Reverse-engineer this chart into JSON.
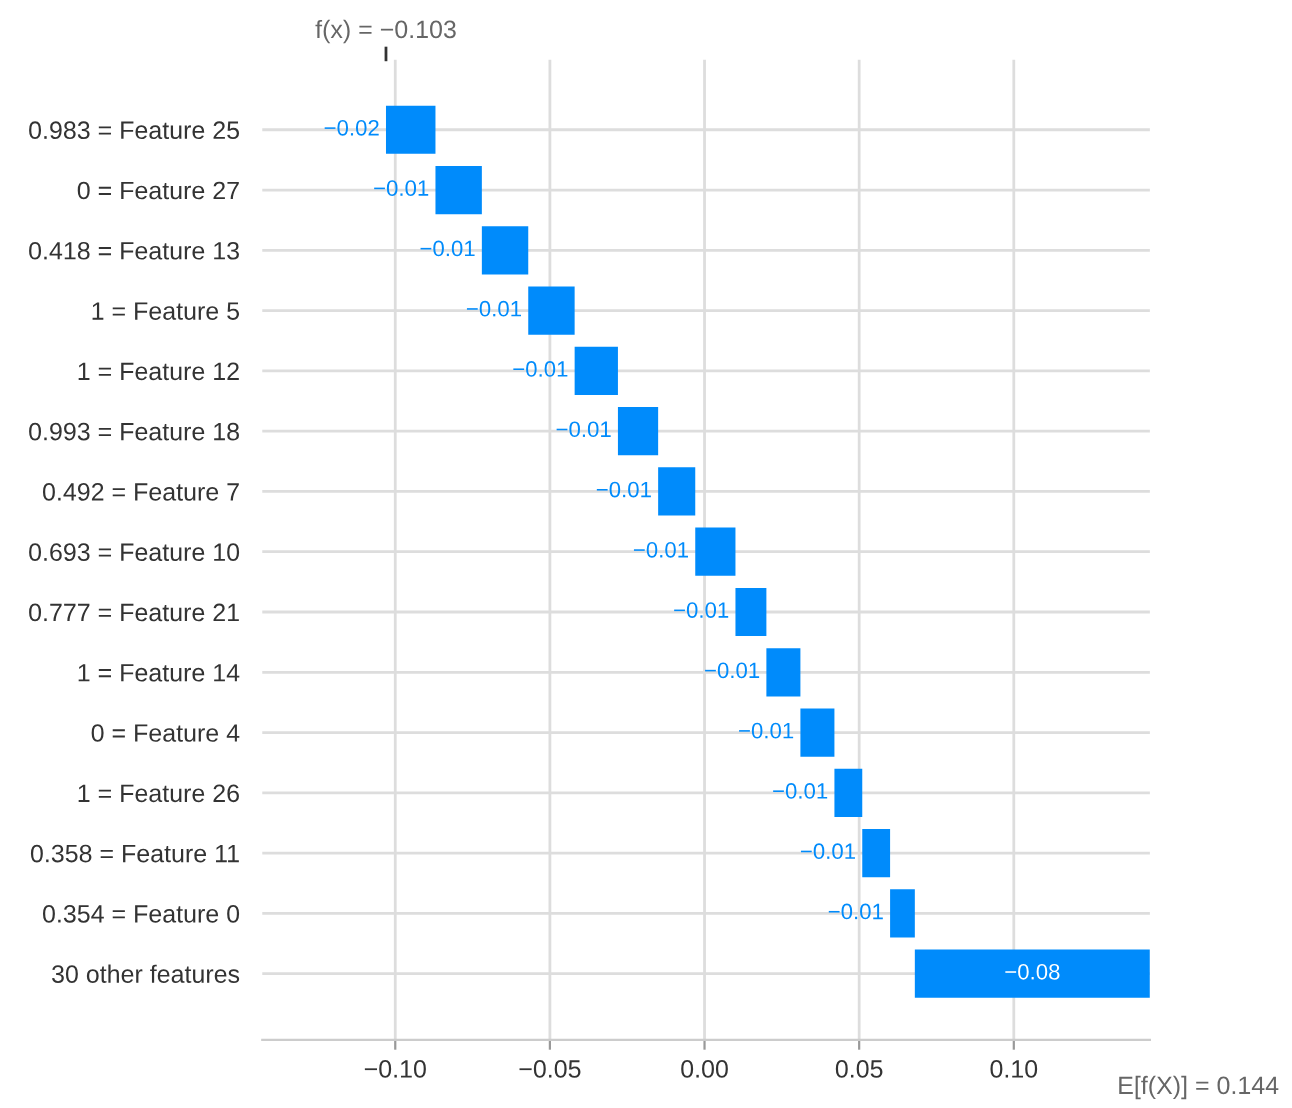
{
  "chart_data": {
    "type": "bar",
    "orientation": "horizontal",
    "categories": [
      "0.983 = Feature 25",
      "0 = Feature 27",
      "0.418 = Feature 13",
      "1 = Feature 5",
      "1 = Feature 12",
      "0.993 = Feature 18",
      "0.492 = Feature 7",
      "0.693 = Feature 10",
      "0.777 = Feature 21",
      "1 = Feature 14",
      "0 = Feature 4",
      "1 = Feature 26",
      "0.358 = Feature 11",
      "0.354 = Feature 0",
      "30 other features"
    ],
    "values": [
      -0.016,
      -0.015,
      -0.015,
      -0.015,
      -0.014,
      -0.013,
      -0.012,
      -0.013,
      -0.01,
      -0.011,
      -0.011,
      -0.009,
      -0.009,
      -0.008,
      -0.076
    ],
    "base": [
      -0.087,
      -0.072,
      -0.057,
      -0.042,
      -0.028,
      -0.015,
      -0.003,
      0.01,
      0.02,
      0.031,
      0.042,
      0.051,
      0.06,
      0.068,
      0.144
    ],
    "value_labels": [
      "−0.02",
      "−0.01",
      "−0.01",
      "−0.01",
      "−0.01",
      "−0.01",
      "−0.01",
      "−0.01",
      "−0.01",
      "−0.01",
      "−0.01",
      "−0.01",
      "−0.01",
      "−0.01",
      "−0.08"
    ],
    "color": "#008bfb",
    "xlim": [
      -0.143,
      0.144
    ],
    "xticks": [
      {
        "value": -0.1,
        "label": "−0.10"
      },
      {
        "value": -0.05,
        "label": "−0.05"
      },
      {
        "value": 0,
        "label": "0.00"
      },
      {
        "value": 0.05,
        "label": "0.05"
      },
      {
        "value": 0.1,
        "label": "0.10"
      }
    ],
    "grid": true,
    "annotations": [
      "f(x) = −0.103",
      "E[f(X)] = 0.144"
    ]
  }
}
